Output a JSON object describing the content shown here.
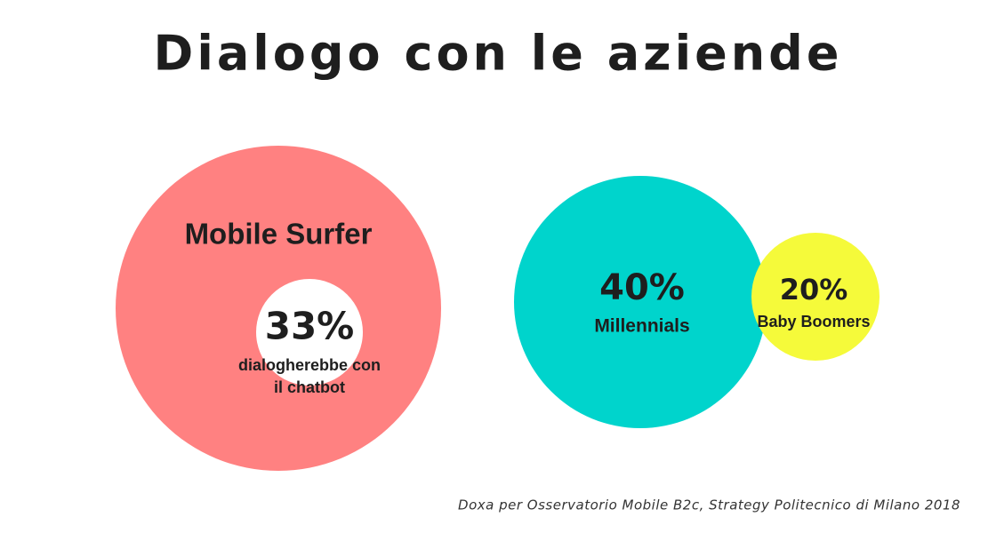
{
  "header": {
    "title": "Dialogo con le aziende"
  },
  "circles": [
    {
      "label": "Mobile Surfer",
      "percent": "33%",
      "description": [
        "dialogherebbe con",
        "il chatbot"
      ]
    },
    {
      "percent": "40%",
      "label": "Millennials"
    },
    {
      "percent": "20%",
      "label": "Baby Boomers"
    }
  ],
  "footer": {
    "source": "Doxa per Osservatorio Mobile B2c, Strategy Politecnico di Milano 2018"
  }
}
